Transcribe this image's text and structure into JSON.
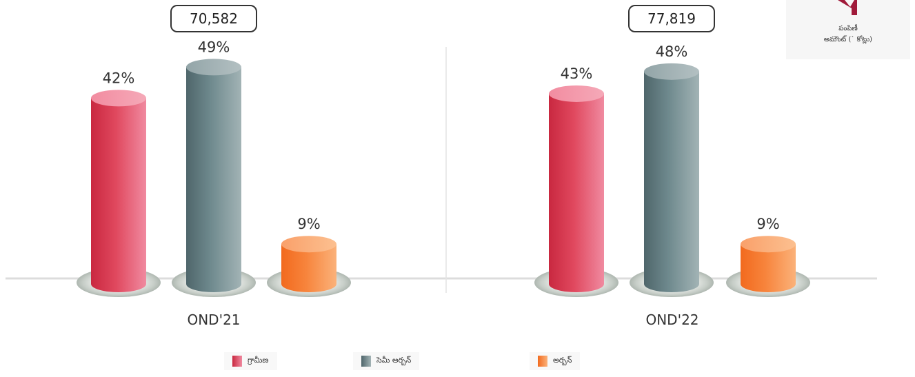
{
  "colors": {
    "rural": "#e0485e",
    "semi_urban": "#6f8a8e",
    "urban": "#f7843c"
  },
  "unit_badge": {
    "line1": "పంపిణీ",
    "line2": "అమౌంట్ (` కోట్లు)"
  },
  "legend": [
    {
      "label": "గ్రామీణ",
      "color_key": "rural"
    },
    {
      "label": "సెమీ అర్బన్",
      "color_key": "semi_urban"
    },
    {
      "label": "అర్బన్",
      "color_key": "urban"
    }
  ],
  "chart_data": {
    "type": "bar",
    "categories": [
      "OND'21",
      "OND'22"
    ],
    "totals": [
      "70,582",
      "77,819"
    ],
    "series": [
      {
        "name": "గ్రామీణ",
        "values": [
          42,
          43
        ]
      },
      {
        "name": "సెమీ అర్బన్",
        "values": [
          49,
          48
        ]
      },
      {
        "name": "అర్బన్",
        "values": [
          9,
          9
        ]
      }
    ],
    "value_suffix": "%",
    "ylim": [
      0,
      60
    ],
    "grid": false,
    "legend_position": "bottom"
  }
}
